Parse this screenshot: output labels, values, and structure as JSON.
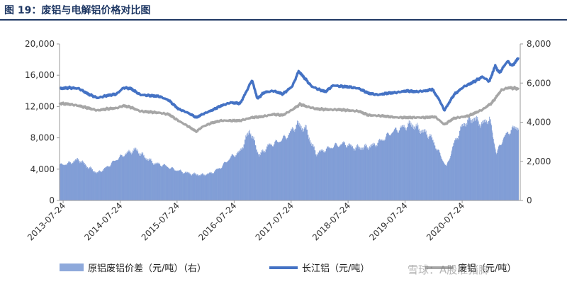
{
  "figure": {
    "title": "图 19：废铝与电解铝价格对比图"
  },
  "watermark": "雪球：A股准猪脚",
  "colors": {
    "spread": "#8ea9db",
    "spread_line": "#6f8fd0",
    "changjiang": "#4472c4",
    "scrap": "#a6a6a6",
    "title": "#1f3864"
  },
  "chart_data": {
    "type": "bar+line",
    "x_tick_labels": [
      "2013-07-24",
      "2014-07-24",
      "2015-07-24",
      "2016-07-24",
      "2017-07-24",
      "2018-07-24",
      "2019-07-24",
      "2020-07-24"
    ],
    "x_range": [
      "2013-07-01",
      "2021-07-31"
    ],
    "left_axis": {
      "min": 0,
      "max": 20000,
      "ticks": [
        "0",
        "4,000",
        "8,000",
        "12,000",
        "16,000",
        "20,000"
      ]
    },
    "right_axis": {
      "min": 0,
      "max": 8000,
      "ticks": [
        "0",
        "2,000",
        "4,000",
        "6,000",
        "8,000"
      ]
    },
    "series": [
      {
        "name": "原铝废铝价差（元/吨）（右）",
        "type": "bar",
        "axis": "right",
        "points": [
          [
            "2013-07-01",
            1800
          ],
          [
            "2013-09-01",
            1900
          ],
          [
            "2013-11-01",
            2100
          ],
          [
            "2014-01-01",
            1700
          ],
          [
            "2014-03-01",
            1400
          ],
          [
            "2014-05-01",
            1700
          ],
          [
            "2014-07-01",
            2100
          ],
          [
            "2014-09-01",
            2400
          ],
          [
            "2014-11-01",
            2600
          ],
          [
            "2015-01-01",
            2200
          ],
          [
            "2015-03-01",
            1900
          ],
          [
            "2015-05-01",
            1800
          ],
          [
            "2015-07-01",
            1600
          ],
          [
            "2015-09-01",
            1450
          ],
          [
            "2015-11-01",
            1350
          ],
          [
            "2016-01-01",
            1300
          ],
          [
            "2016-03-01",
            1400
          ],
          [
            "2016-05-01",
            1700
          ],
          [
            "2016-07-01",
            2200
          ],
          [
            "2016-09-01",
            2500
          ],
          [
            "2016-11-01",
            3600
          ],
          [
            "2017-01-01",
            2300
          ],
          [
            "2017-03-01",
            2800
          ],
          [
            "2017-05-01",
            3000
          ],
          [
            "2017-07-01",
            3300
          ],
          [
            "2017-09-01",
            3900
          ],
          [
            "2017-11-01",
            3600
          ],
          [
            "2017-12-01",
            2900
          ],
          [
            "2018-01-01",
            2400
          ],
          [
            "2018-03-01",
            2600
          ],
          [
            "2018-05-01",
            2800
          ],
          [
            "2018-07-01",
            2900
          ],
          [
            "2018-09-01",
            2700
          ],
          [
            "2018-11-01",
            2700
          ],
          [
            "2019-01-01",
            2800
          ],
          [
            "2019-03-01",
            3100
          ],
          [
            "2019-05-01",
            3500
          ],
          [
            "2019-07-01",
            3700
          ],
          [
            "2019-09-01",
            3900
          ],
          [
            "2019-11-01",
            3600
          ],
          [
            "2020-01-01",
            3300
          ],
          [
            "2020-03-01",
            2400
          ],
          [
            "2020-04-15",
            1700
          ],
          [
            "2020-06-01",
            2900
          ],
          [
            "2020-08-01",
            3900
          ],
          [
            "2020-10-01",
            4200
          ],
          [
            "2020-12-01",
            3900
          ],
          [
            "2021-01-15",
            4200
          ],
          [
            "2021-03-01",
            2400
          ],
          [
            "2021-04-15",
            3200
          ],
          [
            "2021-06-01",
            3600
          ],
          [
            "2021-07-20",
            3800
          ]
        ]
      },
      {
        "name": "长江铝（元/吨）",
        "type": "line",
        "axis": "left",
        "points": [
          [
            "2013-07-01",
            14300
          ],
          [
            "2013-09-01",
            14400
          ],
          [
            "2013-11-01",
            14300
          ],
          [
            "2014-01-01",
            13600
          ],
          [
            "2014-03-01",
            13100
          ],
          [
            "2014-05-01",
            13400
          ],
          [
            "2014-07-01",
            13600
          ],
          [
            "2014-08-15",
            14400
          ],
          [
            "2014-10-01",
            14300
          ],
          [
            "2014-12-01",
            13500
          ],
          [
            "2015-02-01",
            13400
          ],
          [
            "2015-04-01",
            13300
          ],
          [
            "2015-06-01",
            12800
          ],
          [
            "2015-08-01",
            11700
          ],
          [
            "2015-10-01",
            11200
          ],
          [
            "2015-11-25",
            10600
          ],
          [
            "2016-01-01",
            11000
          ],
          [
            "2016-03-01",
            11500
          ],
          [
            "2016-05-01",
            12100
          ],
          [
            "2016-07-01",
            12500
          ],
          [
            "2016-09-01",
            12400
          ],
          [
            "2016-10-15",
            14100
          ],
          [
            "2016-11-15",
            15400
          ],
          [
            "2016-12-20",
            13000
          ],
          [
            "2017-02-01",
            13800
          ],
          [
            "2017-04-01",
            14000
          ],
          [
            "2017-06-01",
            13600
          ],
          [
            "2017-08-01",
            14600
          ],
          [
            "2017-09-10",
            16500
          ],
          [
            "2017-10-20",
            15600
          ],
          [
            "2017-12-01",
            14600
          ],
          [
            "2018-01-15",
            14200
          ],
          [
            "2018-03-01",
            13900
          ],
          [
            "2018-04-20",
            14700
          ],
          [
            "2018-06-01",
            14600
          ],
          [
            "2018-08-01",
            14500
          ],
          [
            "2018-10-01",
            14300
          ],
          [
            "2018-12-01",
            13700
          ],
          [
            "2019-02-01",
            13500
          ],
          [
            "2019-04-01",
            13700
          ],
          [
            "2019-06-01",
            13800
          ],
          [
            "2019-08-01",
            14000
          ],
          [
            "2019-10-01",
            13900
          ],
          [
            "2019-12-01",
            14000
          ],
          [
            "2020-01-15",
            14200
          ],
          [
            "2020-03-01",
            12800
          ],
          [
            "2020-04-01",
            11500
          ],
          [
            "2020-06-01",
            13500
          ],
          [
            "2020-08-01",
            14500
          ],
          [
            "2020-10-01",
            15100
          ],
          [
            "2020-12-01",
            15800
          ],
          [
            "2021-01-15",
            15200
          ],
          [
            "2021-02-20",
            17200
          ],
          [
            "2021-03-20",
            16300
          ],
          [
            "2021-05-10",
            17800
          ],
          [
            "2021-06-10",
            17200
          ],
          [
            "2021-07-20",
            18200
          ]
        ]
      },
      {
        "name": "废铝（元/吨）",
        "type": "line",
        "axis": "left",
        "points": [
          [
            "2013-07-01",
            12400
          ],
          [
            "2013-09-01",
            12300
          ],
          [
            "2013-11-01",
            12100
          ],
          [
            "2014-01-01",
            11800
          ],
          [
            "2014-03-01",
            11500
          ],
          [
            "2014-05-01",
            11700
          ],
          [
            "2014-07-01",
            11800
          ],
          [
            "2014-08-15",
            12100
          ],
          [
            "2014-10-01",
            11900
          ],
          [
            "2014-12-01",
            11400
          ],
          [
            "2015-02-01",
            11300
          ],
          [
            "2015-04-01",
            11200
          ],
          [
            "2015-06-01",
            11000
          ],
          [
            "2015-08-01",
            10200
          ],
          [
            "2015-10-01",
            9500
          ],
          [
            "2015-11-25",
            8800
          ],
          [
            "2016-01-01",
            9400
          ],
          [
            "2016-03-01",
            9900
          ],
          [
            "2016-05-01",
            10200
          ],
          [
            "2016-07-01",
            10200
          ],
          [
            "2016-09-01",
            10200
          ],
          [
            "2016-11-15",
            10600
          ],
          [
            "2017-01-15",
            10700
          ],
          [
            "2017-04-01",
            11000
          ],
          [
            "2017-06-01",
            10900
          ],
          [
            "2017-08-01",
            11600
          ],
          [
            "2017-09-20",
            12300
          ],
          [
            "2017-11-01",
            12000
          ],
          [
            "2018-01-01",
            11700
          ],
          [
            "2018-04-01",
            11600
          ],
          [
            "2018-06-01",
            11600
          ],
          [
            "2018-08-01",
            11500
          ],
          [
            "2018-10-01",
            11400
          ],
          [
            "2018-12-01",
            10900
          ],
          [
            "2019-03-01",
            10800
          ],
          [
            "2019-06-01",
            10600
          ],
          [
            "2019-09-01",
            10600
          ],
          [
            "2019-12-01",
            10600
          ],
          [
            "2020-02-01",
            10700
          ],
          [
            "2020-04-01",
            9700
          ],
          [
            "2020-06-01",
            10500
          ],
          [
            "2020-09-01",
            10800
          ],
          [
            "2020-12-01",
            11600
          ],
          [
            "2021-02-01",
            12500
          ],
          [
            "2021-04-01",
            14100
          ],
          [
            "2021-05-15",
            14400
          ],
          [
            "2021-07-20",
            14300
          ]
        ]
      }
    ]
  }
}
